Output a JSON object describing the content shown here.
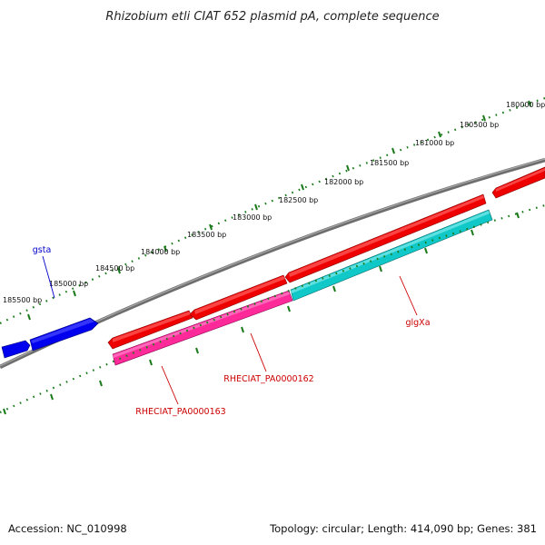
{
  "title": "Rhizobium etli CIAT 652 plasmid pA, complete sequence",
  "footer": {
    "accession": "Accession: NC_010998",
    "summary": "Topology: circular; Length: 414,090 bp; Genes: 381"
  },
  "colors": {
    "backbone": "#808080",
    "tick": "#1a7a1a",
    "label_red": "#cc0000",
    "label_blue": "#0000cc"
  },
  "ticks": [
    {
      "bp": 180000,
      "label": "180000 bp"
    },
    {
      "bp": 180500,
      "label": "180500 bp"
    },
    {
      "bp": 181000,
      "label": "181000 bp"
    },
    {
      "bp": 181500,
      "label": "181500 bp"
    },
    {
      "bp": 182000,
      "label": "182000 bp"
    },
    {
      "bp": 182500,
      "label": "182500 bp"
    },
    {
      "bp": 183000,
      "label": "183000 bp"
    },
    {
      "bp": 183500,
      "label": "183500 bp"
    },
    {
      "bp": 184000,
      "label": "184000 bp"
    },
    {
      "bp": 184500,
      "label": "184500 bp"
    },
    {
      "bp": 185000,
      "label": "185000 bp"
    },
    {
      "bp": 185500,
      "label": "185500 bp"
    }
  ],
  "genes": [
    {
      "id": "gsta",
      "label": "gsta",
      "color": "#0000ee",
      "label_color": "#0000cc"
    },
    {
      "id": "RHECIAT_PA0000163",
      "label": "RHECIAT_PA0000163",
      "color": "#ff2a99",
      "label_color": "#cc0000"
    },
    {
      "id": "RHECIAT_PA0000162",
      "label": "RHECIAT_PA0000162",
      "color": "#ee0000",
      "label_color": "#cc0000"
    },
    {
      "id": "glgXa",
      "label": "glgXa",
      "color": "#11c8c8",
      "label_color": "#cc0000"
    }
  ]
}
